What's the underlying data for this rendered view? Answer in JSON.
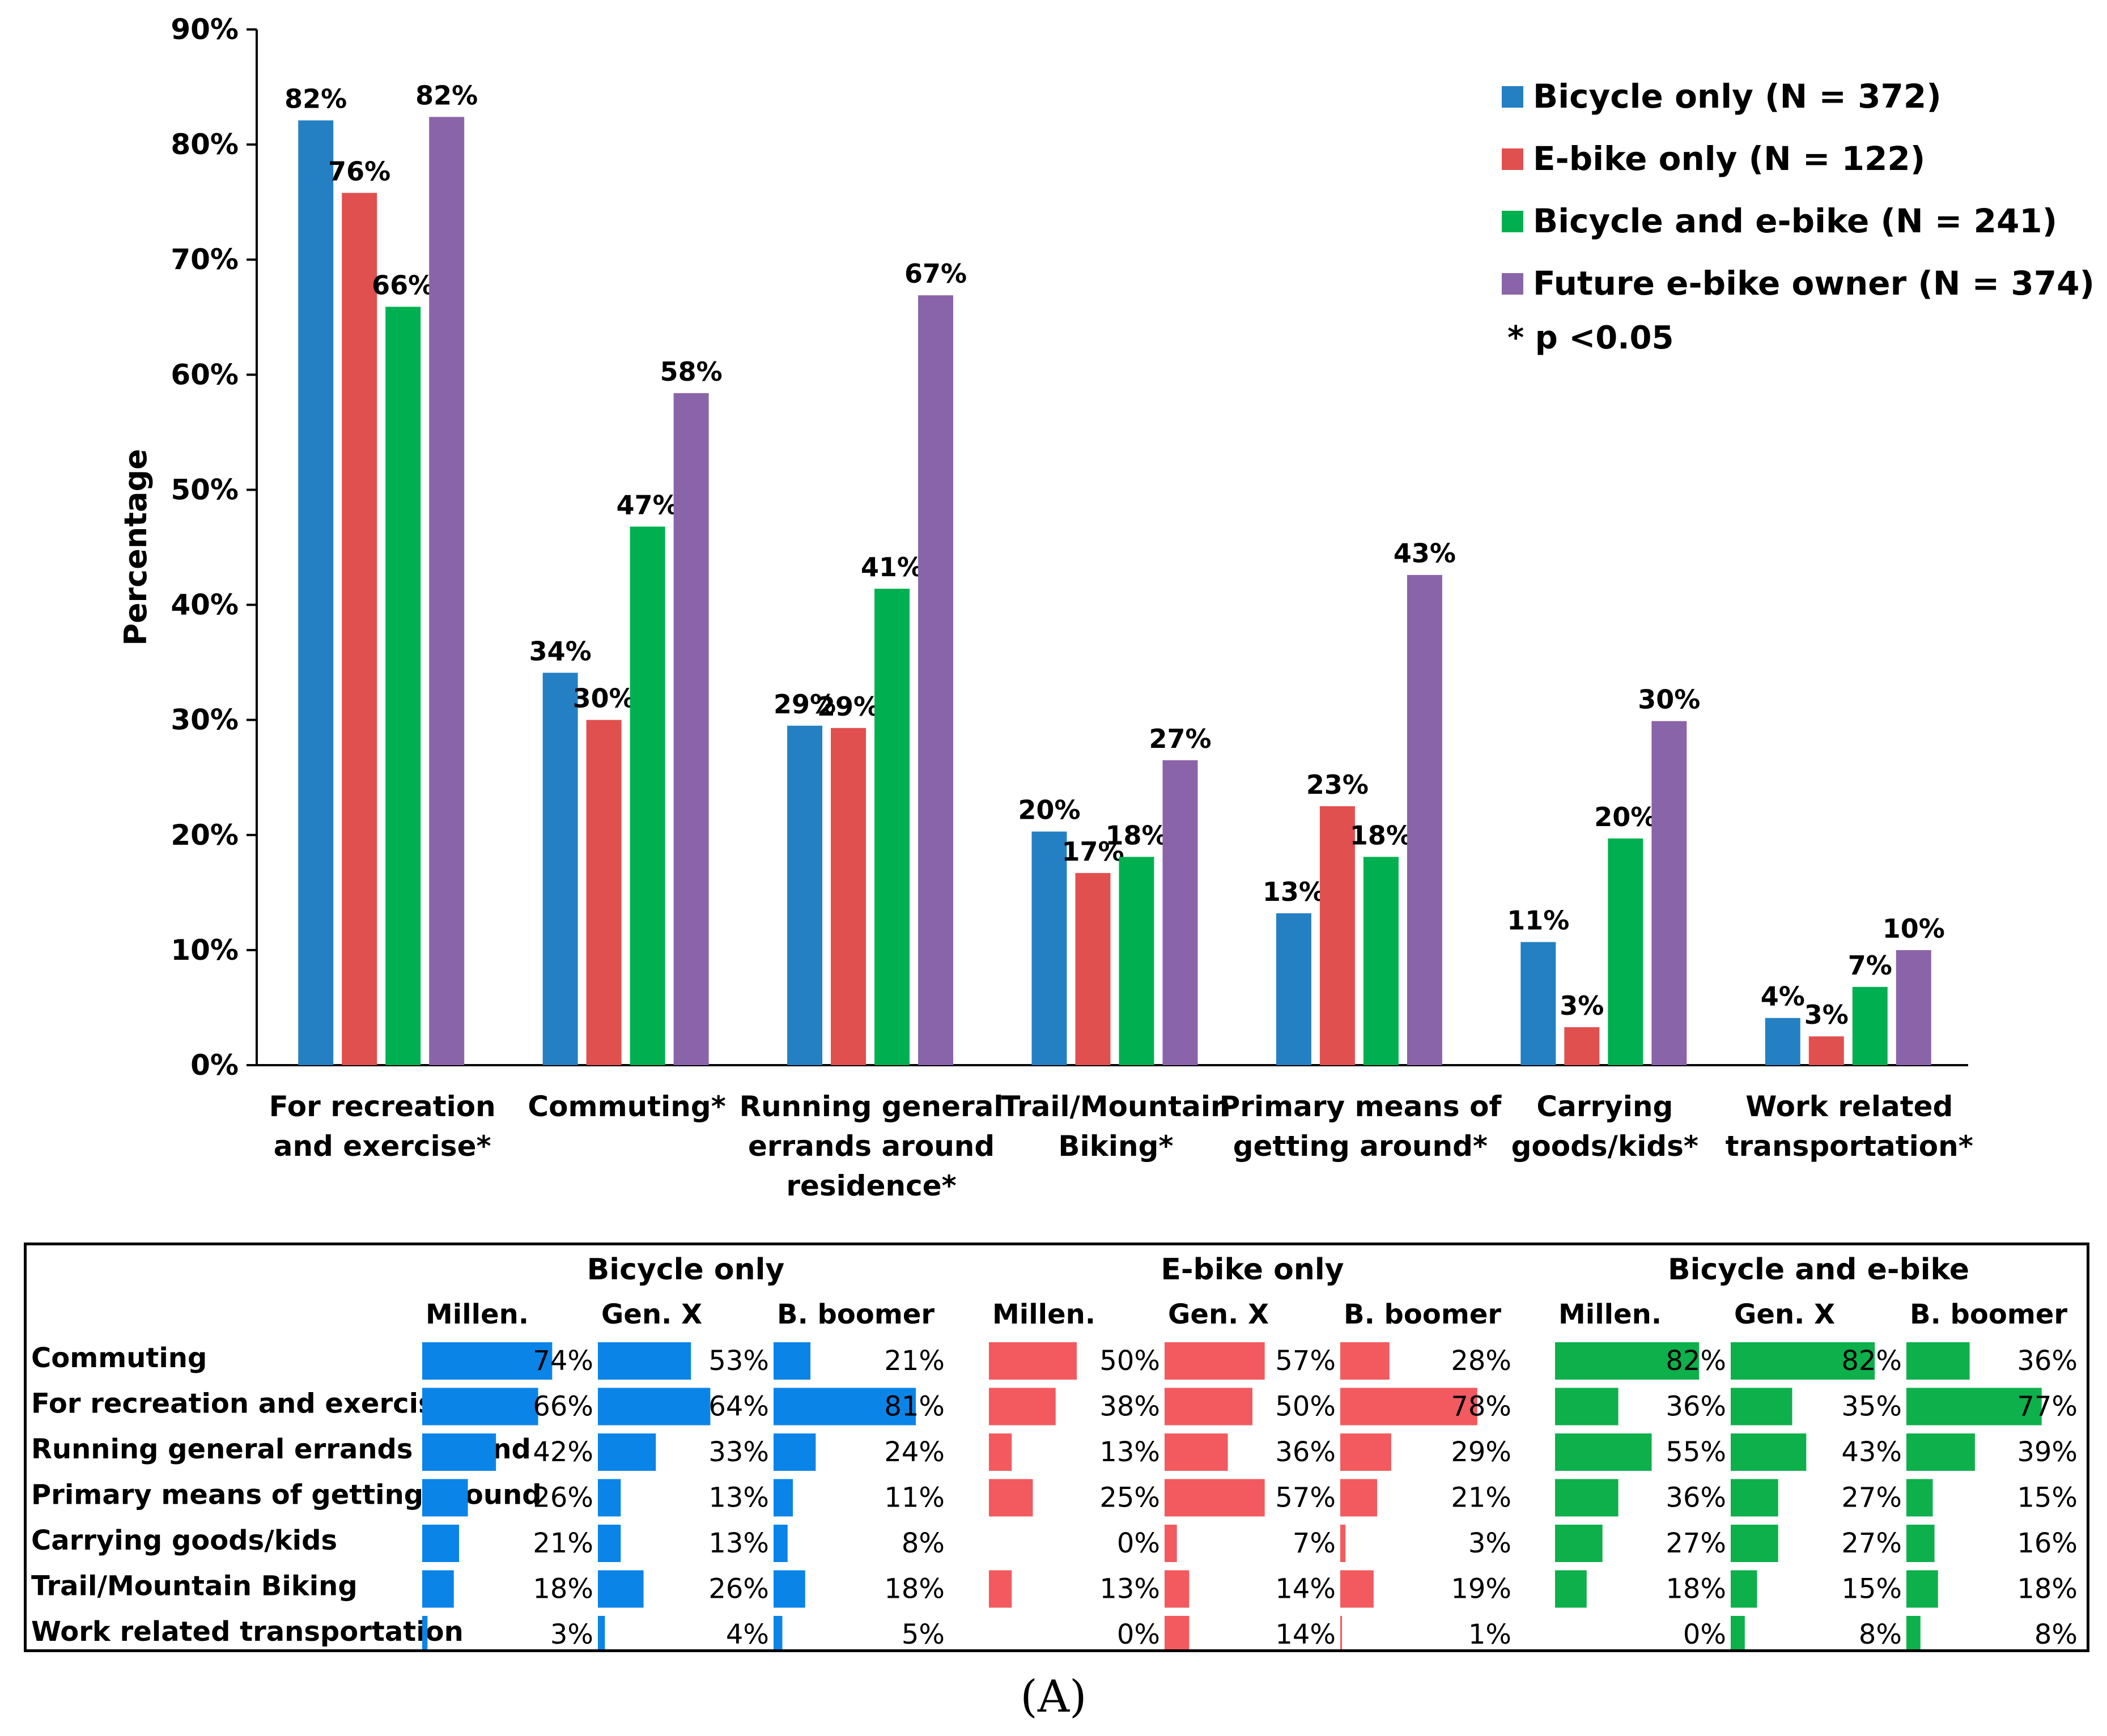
{
  "chart_data": [
    {
      "type": "bar",
      "title": "",
      "xlabel": "",
      "ylabel": "Percentage",
      "ylim": [
        0,
        90
      ],
      "ytick_step": 10,
      "ytick_labels": [
        "0%",
        "10%",
        "20%",
        "30%",
        "40%",
        "50%",
        "60%",
        "70%",
        "80%",
        "90%"
      ],
      "grid": false,
      "legend_position": "top-right",
      "categories": [
        [
          "For recreation",
          "and exercise*"
        ],
        [
          "Commuting*"
        ],
        [
          "Running general",
          "errands around",
          "residence*"
        ],
        [
          "Trail/Mountain",
          "Biking*"
        ],
        [
          "Primary means of",
          "getting around*"
        ],
        [
          "Carrying",
          "goods/kids*"
        ],
        [
          "Work related",
          "transportation*"
        ]
      ],
      "series": [
        {
          "name": "Bicycle only (N = 372)",
          "color": "#2480C3",
          "values": [
            82.1,
            34.1,
            29.5,
            20.3,
            13.2,
            10.7,
            4.1
          ],
          "labels": [
            "82%",
            "34%",
            "29%",
            "20%",
            "13%",
            "11%",
            "4%"
          ]
        },
        {
          "name": "E-bike only (N = 122)",
          "color": "#E0504F",
          "values": [
            75.8,
            30.0,
            29.3,
            16.7,
            22.5,
            3.3,
            2.5
          ],
          "labels": [
            "76%",
            "30%",
            "29%",
            "17%",
            "23%",
            "3%",
            "3%"
          ]
        },
        {
          "name": "Bicycle and e-bike (N = 241)",
          "color": "#00B050",
          "values": [
            65.9,
            46.8,
            41.4,
            18.1,
            18.1,
            19.7,
            6.8
          ],
          "labels": [
            "66%",
            "47%",
            "41%",
            "18%",
            "18%",
            "20%",
            "7%"
          ]
        },
        {
          "name": "Future e-bike owner (N = 374)",
          "color": "#8A64A8",
          "values": [
            82.4,
            58.4,
            66.9,
            26.5,
            42.6,
            29.9,
            10.0
          ],
          "labels": [
            "82%",
            "58%",
            "67%",
            "27%",
            "43%",
            "30%",
            "10%"
          ]
        }
      ],
      "annotation": "* p <0.05"
    },
    {
      "type": "table",
      "groups": [
        {
          "name": "Bicycle only",
          "color": "#0B84E8"
        },
        {
          "name": "E-bike only",
          "color": "#F25A5F"
        },
        {
          "name": "Bicycle and e-bike",
          "color": "#0DB04B"
        }
      ],
      "subcolumns": [
        "Millen.",
        "Gen. X",
        "B. boomer"
      ],
      "rows": [
        {
          "label": "Commuting",
          "values": [
            74,
            53,
            21,
            50,
            57,
            28,
            82,
            82,
            36
          ]
        },
        {
          "label": "For recreation and exercise",
          "values": [
            66,
            64,
            81,
            38,
            50,
            78,
            36,
            35,
            77
          ]
        },
        {
          "label": "Running general errands around",
          "values": [
            42,
            33,
            24,
            13,
            36,
            29,
            55,
            43,
            39
          ]
        },
        {
          "label": "Primary means of getting  around",
          "values": [
            26,
            13,
            11,
            25,
            57,
            21,
            36,
            27,
            15
          ]
        },
        {
          "label": "Carrying goods/kids",
          "values": [
            21,
            13,
            8,
            0,
            7,
            3,
            27,
            27,
            16
          ]
        },
        {
          "label": "Trail/Mountain Biking",
          "values": [
            18,
            26,
            18,
            13,
            14,
            19,
            18,
            15,
            18
          ]
        },
        {
          "label": "Work related transportation",
          "values": [
            3,
            4,
            5,
            0,
            14,
            1,
            0,
            8,
            8
          ]
        }
      ]
    }
  ],
  "caption": "(A)"
}
